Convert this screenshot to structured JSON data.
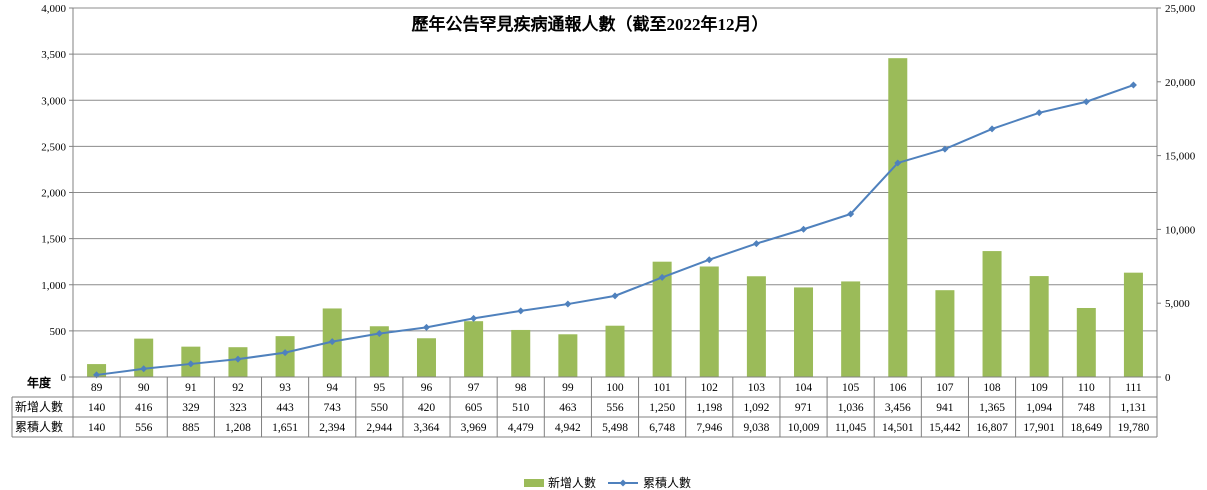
{
  "chart_data": {
    "type": "bar+line",
    "title": "歷年公告罕見疾病通報人數（截至2022年12月）",
    "table_header": "年度",
    "categories": [
      "89",
      "90",
      "91",
      "92",
      "93",
      "94",
      "95",
      "96",
      "97",
      "98",
      "99",
      "100",
      "101",
      "102",
      "103",
      "104",
      "105",
      "106",
      "107",
      "108",
      "109",
      "110",
      "111"
    ],
    "series": [
      {
        "name": "新增人數",
        "type": "bar",
        "axis": "left",
        "color": "#9BBB59",
        "values": [
          140,
          416,
          329,
          323,
          443,
          743,
          550,
          420,
          605,
          510,
          463,
          556,
          1250,
          1198,
          1092,
          971,
          1036,
          3456,
          941,
          1365,
          1094,
          748,
          1131
        ],
        "labels": [
          "140",
          "416",
          "329",
          "323",
          "443",
          "743",
          "550",
          "420",
          "605",
          "510",
          "463",
          "556",
          "1,250",
          "1,198",
          "1,092",
          "971",
          "1,036",
          "3,456",
          "941",
          "1,365",
          "1,094",
          "748",
          "1,131"
        ]
      },
      {
        "name": "累積人數",
        "type": "line",
        "axis": "right",
        "color": "#4F81BD",
        "values": [
          140,
          556,
          885,
          1208,
          1651,
          2394,
          2944,
          3364,
          3969,
          4479,
          4942,
          5498,
          6748,
          7946,
          9038,
          10009,
          11045,
          14501,
          15442,
          16807,
          17901,
          18649,
          19780
        ],
        "labels": [
          "140",
          "556",
          "885",
          "1,208",
          "1,651",
          "2,394",
          "2,944",
          "3,364",
          "3,969",
          "4,479",
          "4,942",
          "5,498",
          "6,748",
          "7,946",
          "9,038",
          "10,009",
          "11,045",
          "14,501",
          "15,442",
          "16,807",
          "17,901",
          "18,649",
          "19,780"
        ]
      }
    ],
    "y_left": {
      "ylim": [
        0,
        4000
      ],
      "ticks": [
        0,
        500,
        1000,
        1500,
        2000,
        2500,
        3000,
        3500,
        4000
      ],
      "tick_labels": [
        "0",
        "500",
        "1,000",
        "1,500",
        "2,000",
        "2,500",
        "3,000",
        "3,500",
        "4,000"
      ]
    },
    "y_right": {
      "ylim": [
        0,
        25000
      ],
      "ticks": [
        0,
        5000,
        10000,
        15000,
        20000,
        25000
      ],
      "tick_labels": [
        "0",
        "5,000",
        "10,000",
        "15,000",
        "20,000",
        "25,000"
      ]
    },
    "grid": true,
    "legend_position": "bottom-center"
  }
}
